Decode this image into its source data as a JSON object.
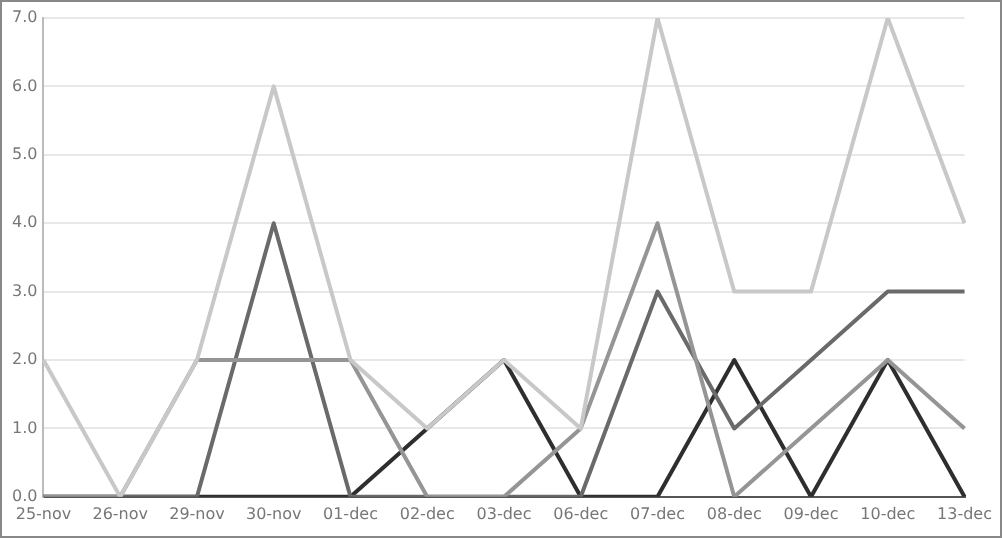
{
  "chart_data": {
    "type": "line",
    "categories": [
      "25-nov",
      "26-nov",
      "29-nov",
      "30-nov",
      "01-dec",
      "02-dec",
      "03-dec",
      "06-dec",
      "07-dec",
      "08-dec",
      "09-dec",
      "10-dec",
      "13-dec"
    ],
    "series": [
      {
        "color": "#c8c8c8",
        "values": [
          2,
          0,
          2,
          6,
          2,
          1,
          2,
          1,
          7,
          3,
          3,
          7,
          4
        ]
      },
      {
        "color": "#959595",
        "values": [
          0,
          0,
          2,
          2,
          2,
          0,
          0,
          1,
          4,
          0,
          1,
          2,
          1
        ]
      },
      {
        "color": "#6a6a6a",
        "values": [
          0,
          0,
          0,
          4,
          0,
          0,
          0,
          0,
          3,
          1,
          2,
          3,
          3
        ]
      },
      {
        "color": "#2e2e2e",
        "values": [
          0,
          0,
          0,
          0,
          0,
          1,
          2,
          0,
          0,
          2,
          0,
          2,
          0
        ]
      }
    ],
    "ylim": [
      0,
      7
    ],
    "yticks": [
      {
        "value": 0,
        "label": "0.0"
      },
      {
        "value": 1,
        "label": "1.0"
      },
      {
        "value": 2,
        "label": "2.0"
      },
      {
        "value": 3,
        "label": "3.0"
      },
      {
        "value": 4,
        "label": "4.0"
      },
      {
        "value": 5,
        "label": "5.0"
      },
      {
        "value": 6,
        "label": "6.0"
      },
      {
        "value": 7,
        "label": "7.0"
      }
    ],
    "grid": "y",
    "legend": false,
    "marker": "none",
    "line_style": "solid"
  }
}
